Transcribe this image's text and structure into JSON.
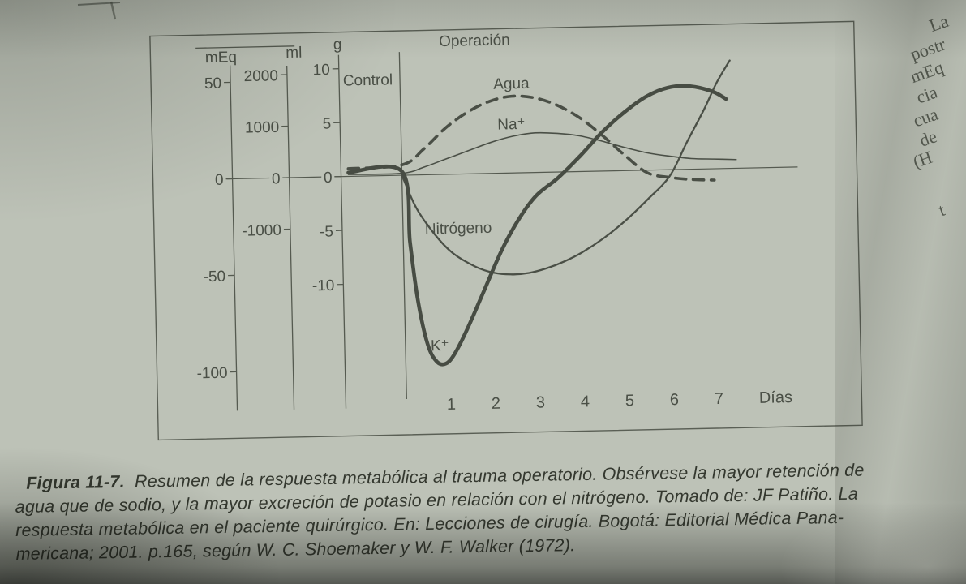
{
  "chart_data": {
    "type": "line",
    "title": "",
    "x_axis": {
      "label": "Días",
      "ticks": [
        1,
        2,
        3,
        4,
        5,
        6,
        7
      ]
    },
    "event_line": {
      "label": "Operación",
      "x": 0
    },
    "control_label": "Control",
    "y_axes": [
      {
        "name": "mEq",
        "ticks": [
          50,
          0,
          -50,
          -100
        ]
      },
      {
        "name": "ml",
        "ticks": [
          2000,
          1000,
          0,
          -1000
        ]
      },
      {
        "name": "g",
        "ticks": [
          10,
          5,
          0,
          -5,
          -10
        ]
      }
    ],
    "series": [
      {
        "name": "Agua",
        "label": "Agua",
        "unit": "ml",
        "style": "dashed",
        "x": [
          -1.2,
          0,
          0.5,
          1,
          1.5,
          2,
          2.5,
          3,
          3.5,
          4,
          4.5,
          5,
          5.5,
          6,
          6.5,
          7
        ],
        "y": [
          150,
          200,
          500,
          900,
          1200,
          1400,
          1490,
          1450,
          1300,
          1050,
          700,
          300,
          -50,
          -150,
          -200,
          -220
        ]
      },
      {
        "name": "Na+",
        "label": "Na⁺",
        "unit": "mEq",
        "style": "thin",
        "x": [
          -1.2,
          0,
          0.5,
          1,
          1.5,
          2,
          2.5,
          3,
          3.5,
          4,
          4.5,
          5,
          5.5,
          6,
          6.5,
          7,
          7.5
        ],
        "y": [
          1,
          1,
          4,
          8,
          12,
          16,
          19,
          20.5,
          20,
          18.5,
          15.5,
          12,
          9,
          7,
          5.5,
          5,
          4.5
        ]
      },
      {
        "name": "Nitrógeno",
        "label": "Nitrógeno",
        "unit": "g",
        "style": "medium",
        "x": [
          0,
          0.3,
          0.7,
          1.1,
          1.6,
          2,
          2.4,
          2.8,
          3.2,
          3.6,
          4,
          4.5,
          5,
          5.5,
          6,
          6.4,
          6.8,
          7.1,
          7.4
        ],
        "y": [
          0,
          -3,
          -5.5,
          -7.3,
          -8.6,
          -9.2,
          -9.4,
          -9.3,
          -8.9,
          -8.3,
          -7.5,
          -6.2,
          -4.6,
          -2.7,
          -0.6,
          2.5,
          5.5,
          8,
          10
        ]
      },
      {
        "name": "K+",
        "label": "K⁺",
        "unit": "mEq",
        "style": "thick",
        "x": [
          -1.2,
          0,
          0.15,
          0.3,
          0.5,
          0.7,
          0.9,
          1.1,
          1.4,
          1.8,
          2.2,
          2.6,
          3,
          3.5,
          4,
          4.5,
          5,
          5.5,
          6,
          6.5,
          7,
          7.3
        ],
        "y": [
          2,
          2,
          -35,
          -65,
          -88,
          -97,
          -98,
          -93,
          -80,
          -60,
          -40,
          -24,
          -12,
          -3,
          8,
          20,
          30,
          38,
          42.5,
          43,
          40,
          36
        ]
      }
    ],
    "layout_hints": {
      "grid": false,
      "legend": "labels-on-curves",
      "baseline_zero_shared": true
    }
  },
  "caption": {
    "label": "Figura 11-7.",
    "line1": "Resumen de la respuesta metabólica al trauma operatorio. Obsérvese la mayor retención de",
    "line2": "agua que de sodio, y la mayor excreción de potasio en relación con el nitrógeno. Tomado de: JF Patiño. La",
    "line3": "respuesta metabólica en el paciente quirúrgico. En: Lecciones de cirugía. Bogotá:  Editorial Médica Pana-",
    "line4": "mericana; 2001. p.165, según W. C. Shoemaker y W. F. Walker (1972)."
  },
  "adjacent_column": {
    "fragments": [
      "La",
      "postr",
      "mEq",
      "cia",
      "cua",
      "de",
      "(H",
      "t"
    ]
  },
  "colors": {
    "paper": "#bdc2b7",
    "ink": "#4a4f46",
    "caption_ink": "#34382f"
  }
}
